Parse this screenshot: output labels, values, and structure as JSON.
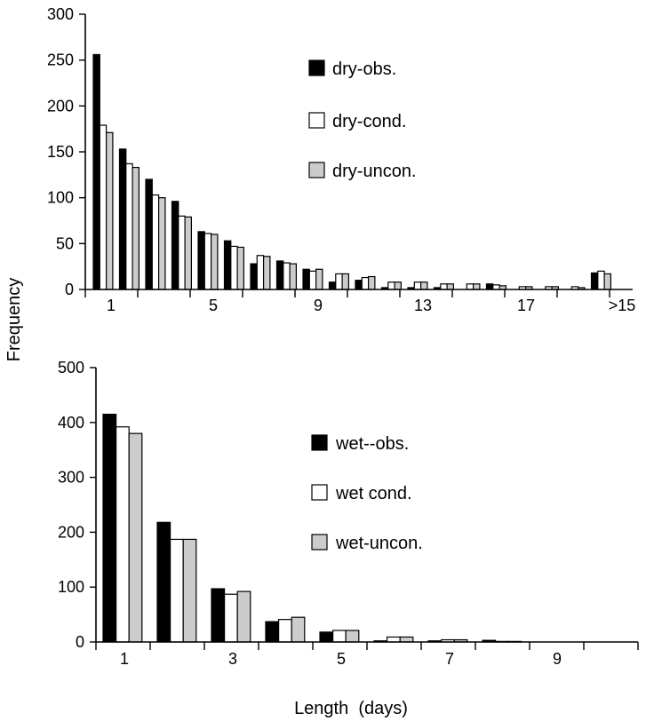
{
  "chart_data": [
    {
      "type": "bar",
      "ylim": [
        0,
        300
      ],
      "yticks": [
        0,
        50,
        100,
        150,
        200,
        250,
        300
      ],
      "xtick_labels": [
        "1",
        "5",
        "9",
        "13",
        "17",
        ">15"
      ],
      "categories": [
        "1",
        "2",
        "3",
        "4",
        "5",
        "6",
        "7",
        "8",
        "9",
        "10",
        "11",
        "12",
        "13",
        "14",
        "15",
        "16",
        "17",
        "18",
        "19",
        ">15"
      ],
      "series": [
        {
          "name": "dry-obs.",
          "color": "#000000",
          "values": [
            256,
            153,
            120,
            96,
            63,
            53,
            28,
            31,
            22,
            8,
            10,
            2,
            2,
            2,
            0,
            6,
            0,
            0,
            0,
            18
          ]
        },
        {
          "name": "dry-cond.",
          "color": "#ffffff",
          "values": [
            179,
            137,
            103,
            80,
            61,
            47,
            37,
            29,
            20,
            17,
            13,
            8,
            8,
            6,
            6,
            5,
            3,
            3,
            3,
            20
          ]
        },
        {
          "name": "dry-uncon.",
          "color": "#cccccc",
          "values": [
            171,
            133,
            100,
            79,
            60,
            46,
            36,
            28,
            22,
            17,
            14,
            8,
            8,
            6,
            6,
            4,
            3,
            3,
            2,
            17
          ]
        }
      ],
      "grid": false,
      "legend_position": "upper-center"
    },
    {
      "type": "bar",
      "ylim": [
        0,
        500
      ],
      "yticks": [
        0,
        100,
        200,
        300,
        400,
        500
      ],
      "xtick_labels": [
        "1",
        "3",
        "5",
        "7",
        "9"
      ],
      "xlabel": "Length  (days)",
      "categories": [
        "1",
        "2",
        "3",
        "4",
        "5",
        "6",
        "7",
        "8",
        "9",
        "10"
      ],
      "series": [
        {
          "name": "wet--obs.",
          "color": "#000000",
          "values": [
            415,
            218,
            97,
            37,
            18,
            2,
            2,
            3,
            0,
            0
          ]
        },
        {
          "name": "wet cond.",
          "color": "#ffffff",
          "values": [
            392,
            187,
            87,
            41,
            21,
            9,
            4,
            1,
            0,
            0
          ]
        },
        {
          "name": "wet-uncon.",
          "color": "#cccccc",
          "values": [
            380,
            187,
            92,
            45,
            21,
            9,
            4,
            1,
            0,
            0
          ]
        }
      ],
      "grid": false,
      "legend_position": "center-right"
    }
  ],
  "shared_ylabel": "Frequency"
}
